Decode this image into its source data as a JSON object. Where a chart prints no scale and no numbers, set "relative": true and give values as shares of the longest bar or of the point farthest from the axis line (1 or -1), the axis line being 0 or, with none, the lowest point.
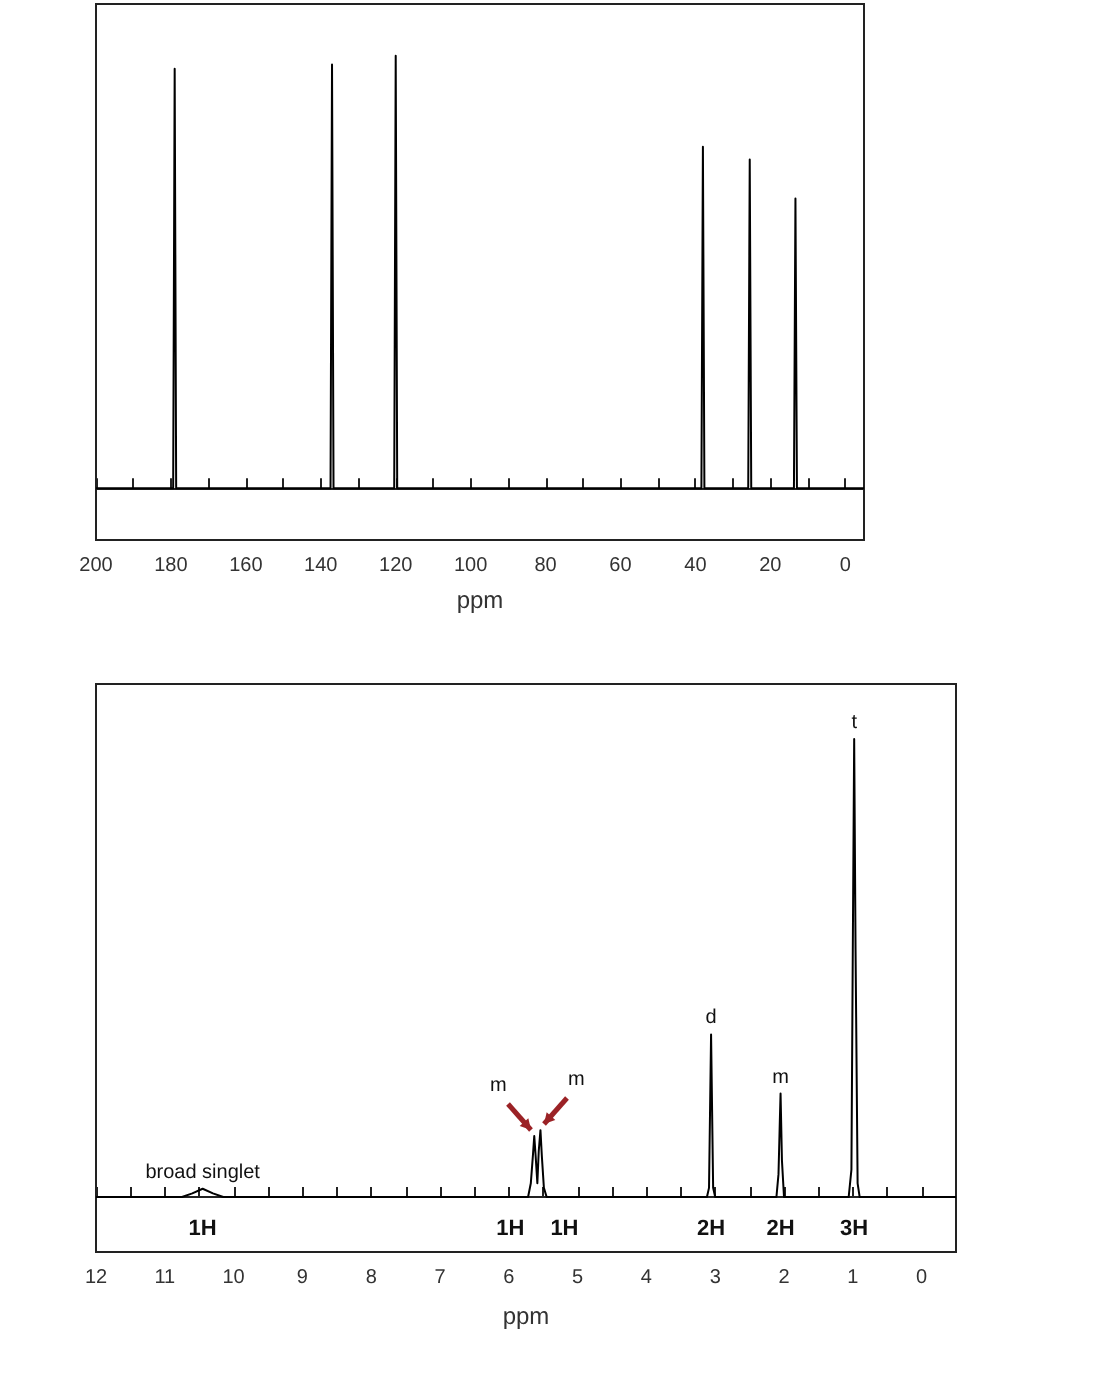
{
  "chart_data": [
    {
      "type": "line",
      "relative": true,
      "xlabel": "ppm",
      "xlim": [
        200,
        -5
      ],
      "xticks": [
        200,
        {
          "value": 190,
          "label": null
        },
        180,
        {
          "value": 170,
          "label": null
        },
        160,
        {
          "value": 150,
          "label": null
        },
        140,
        {
          "value": 130,
          "label": null
        },
        120,
        {
          "value": 110,
          "label": null
        },
        100,
        {
          "value": 90,
          "label": null
        },
        80,
        {
          "value": 70,
          "label": null
        },
        60,
        {
          "value": 50,
          "label": null
        },
        40,
        {
          "value": 30,
          "label": null
        },
        20,
        {
          "value": 10,
          "label": null
        },
        0
      ],
      "grid": false,
      "marker": "none",
      "tick_labels": "x",
      "series": [
        {
          "color": "#000000",
          "x": [
            200,
            179.4,
            179,
            178.6,
            137.4,
            137,
            136.6,
            120.4,
            120,
            119.6,
            38.4,
            38,
            37.6,
            25.9,
            25.5,
            25.1,
            13.7,
            13.3,
            12.9,
            -5
          ],
          "values": [
            0,
            0,
            0.97,
            0,
            0,
            0.98,
            0,
            0,
            1,
            0,
            0,
            0.79,
            0,
            0,
            0.76,
            0,
            0,
            0.67,
            0,
            0
          ]
        }
      ]
    },
    {
      "type": "line",
      "relative": true,
      "xlabel": "ppm",
      "xlim": [
        12,
        -0.5
      ],
      "xticks": [
        12,
        {
          "value": 11.5,
          "label": null
        },
        11,
        {
          "value": 10.5,
          "label": null
        },
        10,
        {
          "value": 9.5,
          "label": null
        },
        9,
        {
          "value": 8.5,
          "label": null
        },
        8,
        {
          "value": 7.5,
          "label": null
        },
        7,
        {
          "value": 6.5,
          "label": null
        },
        6,
        {
          "value": 5.5,
          "label": null
        },
        5,
        {
          "value": 4.5,
          "label": null
        },
        4,
        {
          "value": 3.5,
          "label": null
        },
        3,
        {
          "value": 2.5,
          "label": null
        },
        2,
        {
          "value": 1.5,
          "label": null
        },
        1,
        {
          "value": 0.5,
          "label": null
        },
        0
      ],
      "grid": false,
      "marker": "none",
      "tick_labels": "x",
      "series": [
        {
          "color": "#000000",
          "x": [
            12,
            10.75,
            10.6,
            10.45,
            10.3,
            10.15,
            5.72,
            5.68,
            5.65,
            5.63,
            5.61,
            5.585,
            5.565,
            5.54,
            5.52,
            5.49,
            5.45,
            3.12,
            3.09,
            3.06,
            3.03,
            3.0,
            2.11,
            2.08,
            2.06,
            2.05,
            2.03,
            2.0,
            1.06,
            1.02,
            1.0,
            0.98,
            0.96,
            0.93,
            0.9,
            -0.5
          ],
          "values": [
            0,
            0,
            0.008,
            0.018,
            0.008,
            0,
            0,
            0.03,
            0.09,
            0.133,
            0.09,
            0.03,
            0.1,
            0.146,
            0.09,
            0.02,
            0,
            0,
            0.02,
            0.355,
            0.02,
            0,
            0,
            0.05,
            0.17,
            0.226,
            0.08,
            0,
            0,
            0.06,
            0.54,
            1,
            0.54,
            0.03,
            0,
            0
          ]
        }
      ],
      "annotations": [
        {
          "text": "broad singlet",
          "x": 10.45,
          "y": 0.018
        },
        {
          "text": "m",
          "x": 5.63,
          "y": 0.133
        },
        {
          "text": "m",
          "x": 5.54,
          "y": 0.146
        },
        {
          "text": "d",
          "x": 3.06,
          "y": 0.355
        },
        {
          "text": "m",
          "x": 2.05,
          "y": 0.226
        },
        {
          "text": "t",
          "x": 0.98,
          "y": 1
        },
        "1H",
        "1H",
        "1H",
        "2H",
        "2H",
        "3H"
      ]
    }
  ]
}
